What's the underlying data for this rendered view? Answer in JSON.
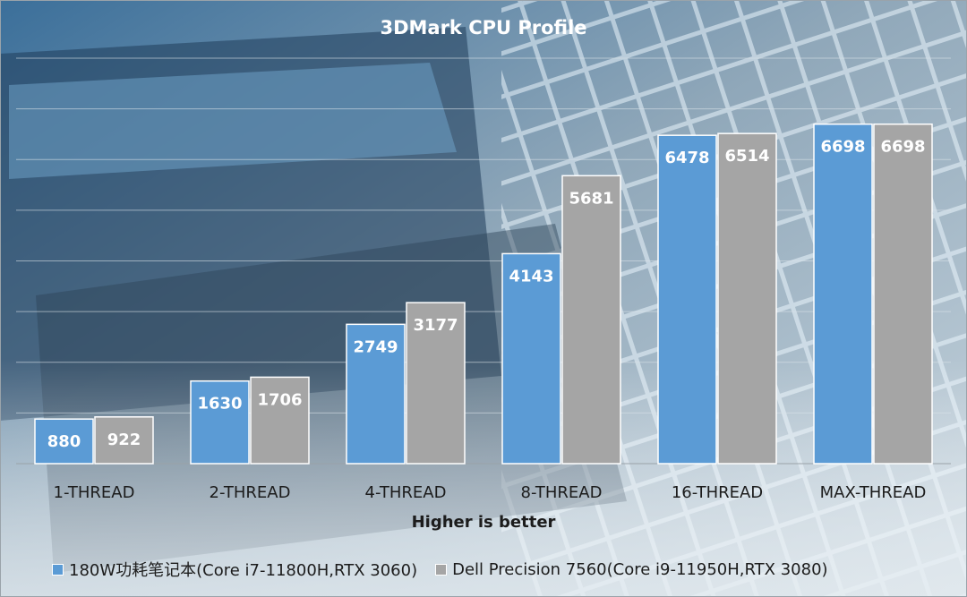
{
  "chart_data": {
    "type": "bar",
    "title": "3DMark CPU Profile",
    "xlabel": "Higher is better",
    "ylabel": "",
    "ylim": [
      0,
      8000
    ],
    "grid": true,
    "legend_position": "bottom",
    "categories": [
      "1-THREAD",
      "2-THREAD",
      "4-THREAD",
      "8-THREAD",
      "16-THREAD",
      "MAX-THREAD"
    ],
    "series": [
      {
        "name": "180W功耗笔记本(Core i7-11800H,RTX 3060)",
        "color": "#5b9bd5",
        "values": [
          880,
          1630,
          2749,
          4143,
          6478,
          6698
        ]
      },
      {
        "name": "Dell Precision 7560(Core i9-11950H,RTX 3080)",
        "color": "#a5a5a5",
        "values": [
          922,
          1706,
          3177,
          5681,
          6514,
          6698
        ]
      }
    ]
  }
}
